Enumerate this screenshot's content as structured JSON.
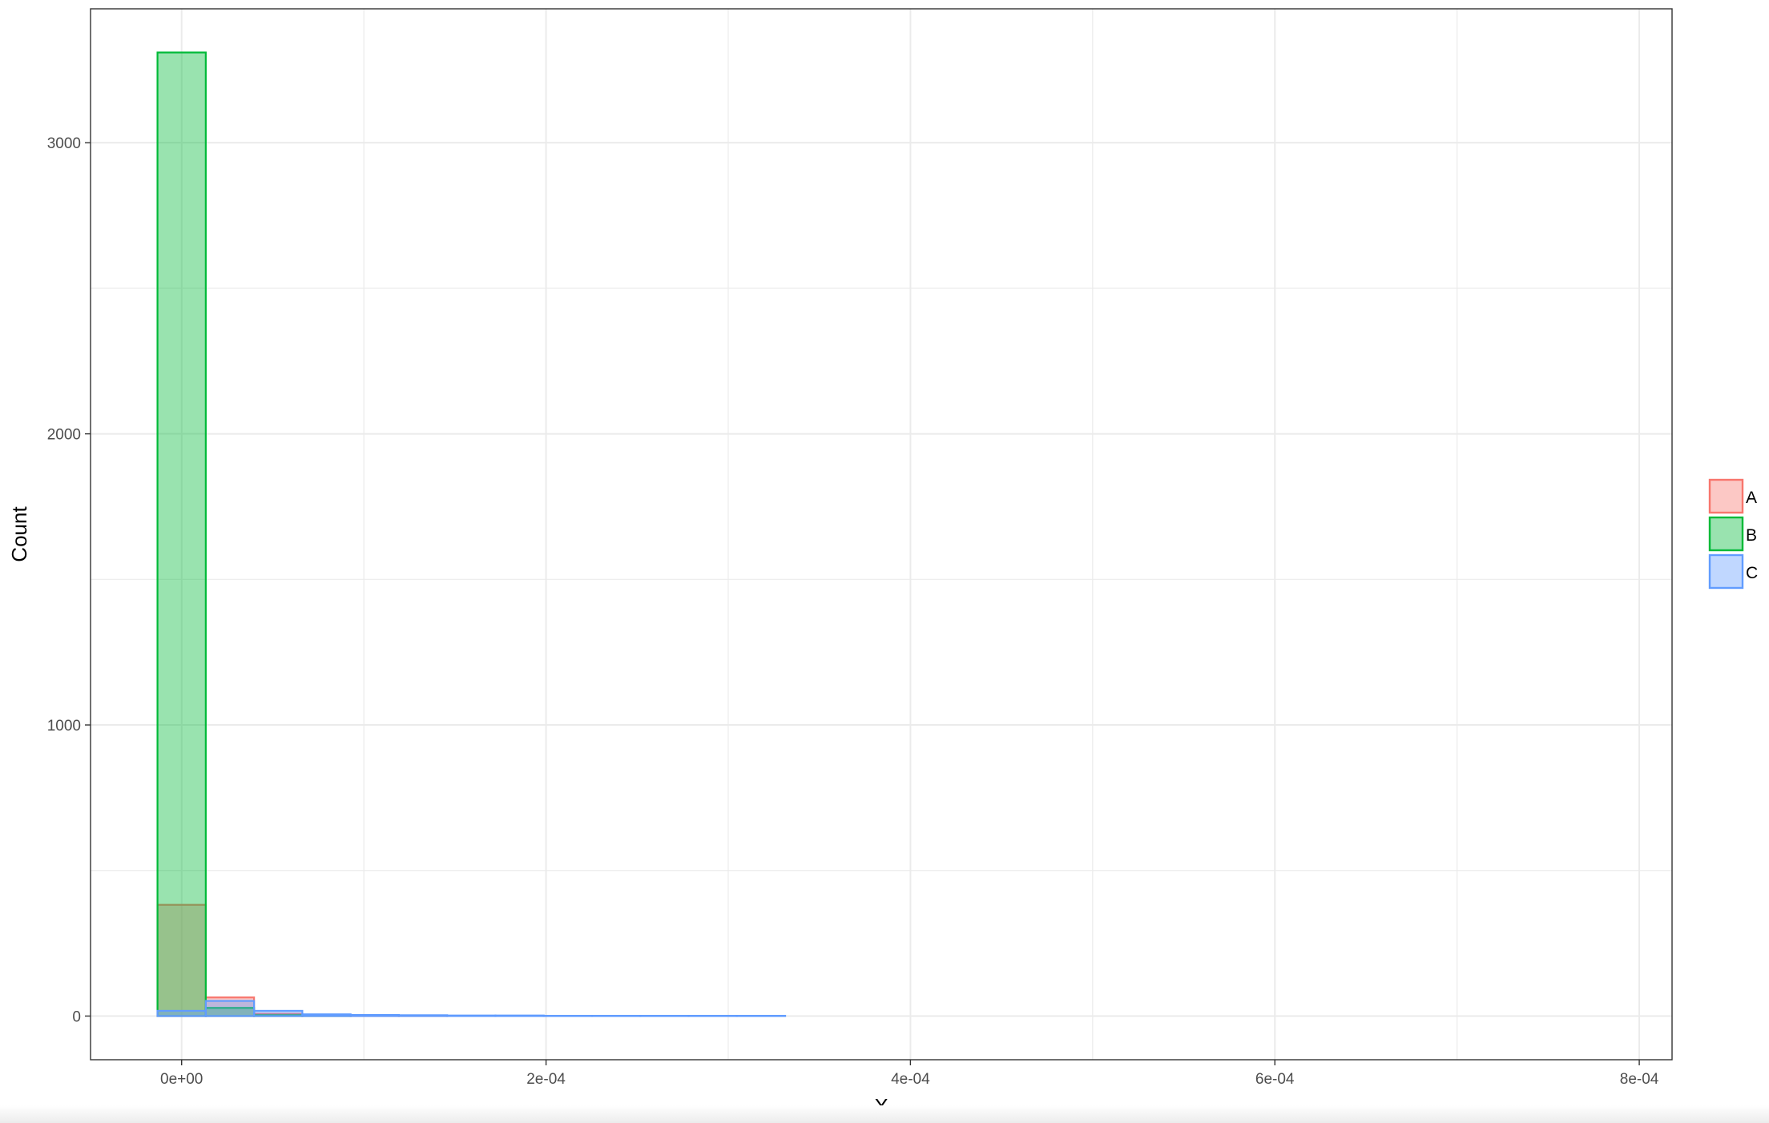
{
  "chart_data": {
    "type": "histogram",
    "title": "",
    "xlabel": "X",
    "ylabel": "Count",
    "xlim": [
      -5e-05,
      0.000818
    ],
    "ylim": [
      -150,
      3460
    ],
    "x_ticks": [
      0,
      0.0002,
      0.0004,
      0.0006,
      0.0008
    ],
    "x_tick_labels": [
      "0e+00",
      "2e-04",
      "4e-04",
      "6e-04",
      "8e-04"
    ],
    "y_ticks": [
      0,
      1000,
      2000,
      3000
    ],
    "y_tick_labels": [
      "0",
      "1000",
      "2000",
      "3000"
    ],
    "grid": true,
    "legend_position": "right",
    "bin_width": 2.65e-05,
    "first_bin_center": 0,
    "series": [
      {
        "name": "A",
        "color": "#F8766D",
        "counts": [
          382,
          64,
          8,
          2,
          1,
          1,
          0,
          0,
          0,
          0,
          0,
          0,
          0,
          0,
          0,
          0,
          0,
          0,
          0,
          0,
          0,
          0,
          0,
          0,
          0,
          0,
          0,
          0,
          0,
          0
        ]
      },
      {
        "name": "B",
        "color": "#00BA38",
        "counts": [
          3310,
          28,
          3,
          1,
          0,
          0,
          0,
          0,
          0,
          0,
          0,
          0,
          0,
          0,
          0,
          0,
          0,
          0,
          0,
          0,
          0,
          0,
          0,
          0,
          0,
          0,
          0,
          0,
          0,
          0
        ]
      },
      {
        "name": "C",
        "color": "#619CFF",
        "counts": [
          18,
          52,
          18,
          6,
          4,
          3,
          2,
          2,
          1,
          1,
          1,
          1,
          1,
          0,
          0,
          0,
          0,
          0,
          0,
          0,
          0,
          0,
          0,
          0,
          0,
          0,
          0,
          0,
          0,
          0
        ]
      }
    ]
  }
}
